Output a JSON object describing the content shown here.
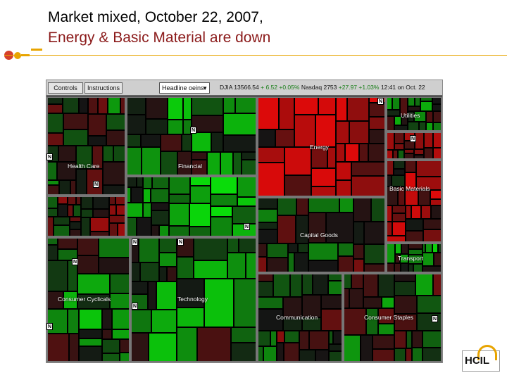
{
  "slide": {
    "title_line1": "Market mixed, October 22, 2007,",
    "title_line2": "Energy  & Basic Material are down",
    "logo_text": "HCIL"
  },
  "toolbar": {
    "controls_label": "Controls",
    "instructions_label": "Instructions",
    "dropdown_value": "Headline oeins",
    "ticker_dow_label": "DJIA 13566.54",
    "ticker_dow_change": "+ 6.52 +0.05%",
    "ticker_nasdaq_label": "Nasdaq 2753",
    "ticker_nasdaq_change": "+27.97 +1.03%",
    "ticker_time": "12:41 on Oct. 22"
  },
  "map": {
    "sectors": {
      "utilities": "Utilities",
      "energy": "Energy",
      "health_care": "Health Care",
      "financial": "Financial",
      "basic_materials": "Basic Materials",
      "capital_goods": "Capital Goods",
      "transport": "Transport",
      "consumer_cyclicals": "Consumer Cyclicals",
      "technology": "Technology",
      "communication": "Communication",
      "consumer_staples": "Consumer Staples"
    },
    "news_badge": "N"
  },
  "colors": {
    "title_accent": "#8b1a1a",
    "rule": "#e8a400",
    "bullet": "#d6402a"
  }
}
